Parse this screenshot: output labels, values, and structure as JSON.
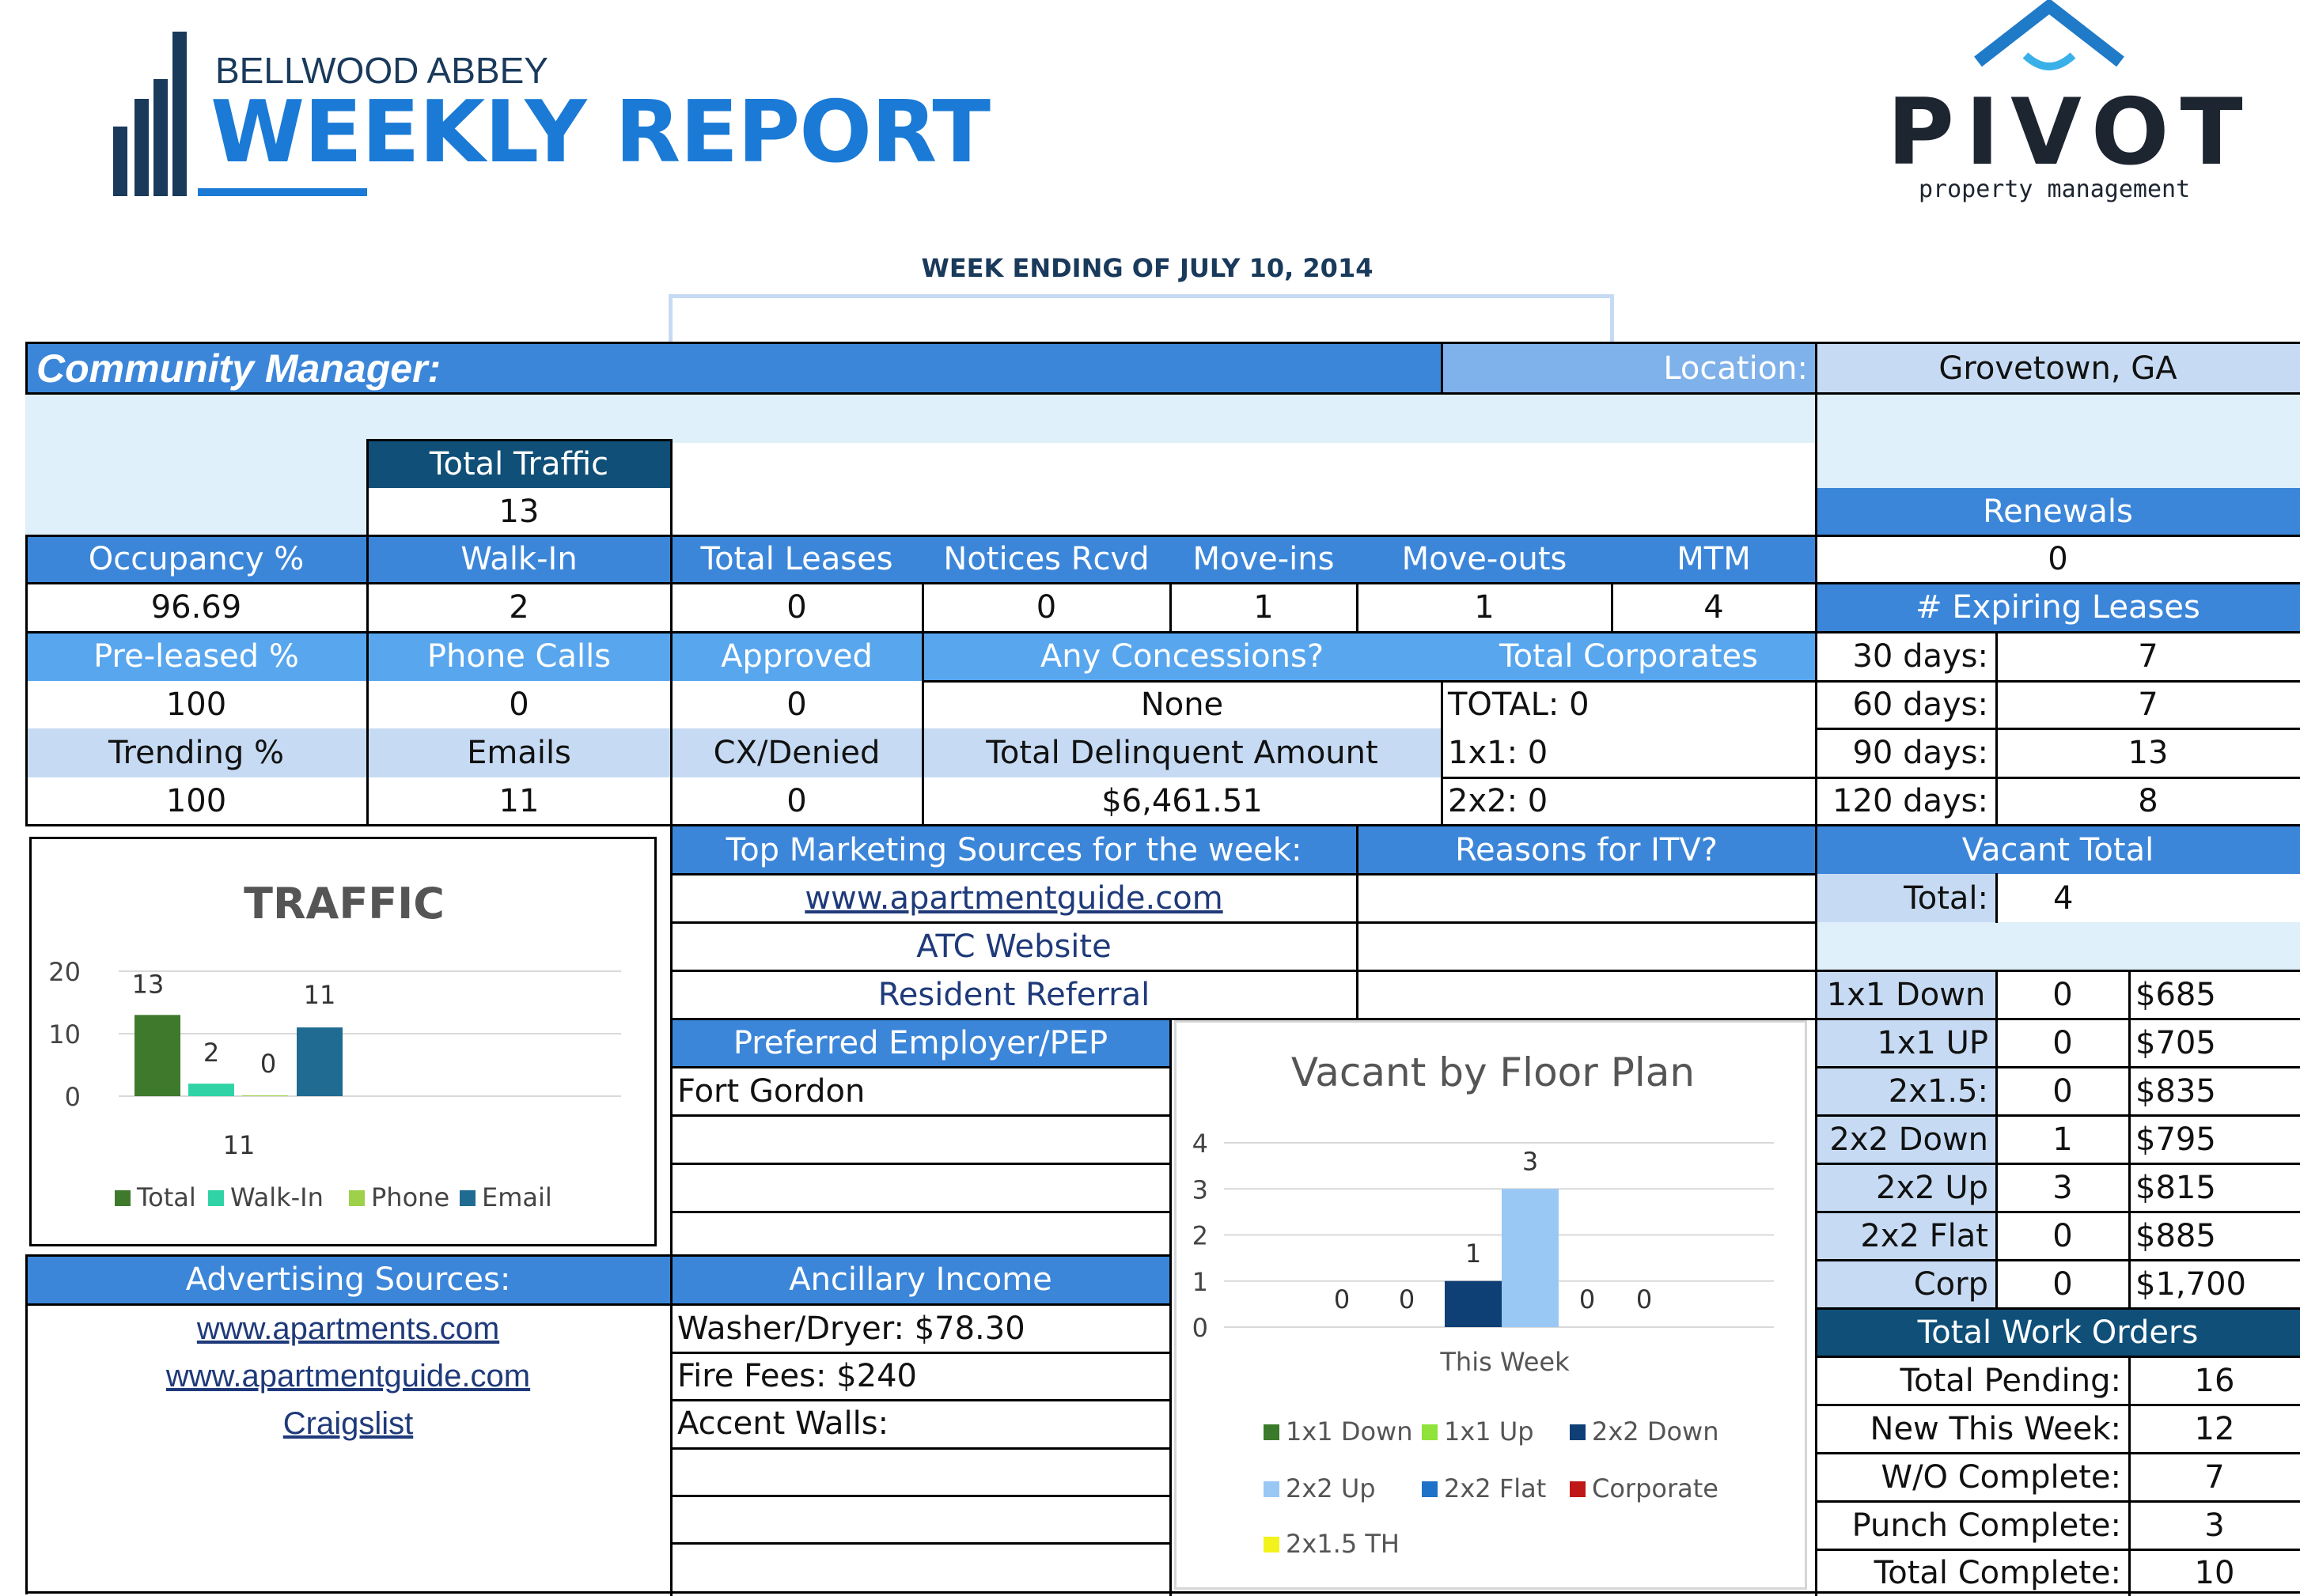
{
  "brand": {
    "community_name": "BELLWOOD ABBEY",
    "report_title": "WEEKLY REPORT",
    "logo_word": "PIVOT",
    "logo_tagline": "property management"
  },
  "week_ending": "WEEK ENDING OF JULY 10, 2014",
  "manager_bar": {
    "label": "Community Manager:",
    "location_label": "Location:",
    "location_value": "Grovetown, GA"
  },
  "traffic": {
    "total_label": "Total Traffic",
    "total_value": "13"
  },
  "row1": {
    "occupancy_label": "Occupancy %",
    "occupancy_value": "96.69",
    "walkin_label": "Walk-In",
    "walkin_value": "2",
    "total_leases_label": "Total Leases",
    "total_leases_value": "0",
    "notices_label": "Notices Rcvd",
    "notices_value": "0",
    "moveins_label": "Move-ins",
    "moveins_value": "1",
    "moveouts_label": "Move-outs",
    "moveouts_value": "1",
    "mtm_label": "MTM",
    "mtm_value": "4"
  },
  "row2": {
    "preleased_label": "Pre-leased %",
    "preleased_value": "100",
    "phone_label": "Phone Calls",
    "phone_value": "0",
    "approved_label": "Approved",
    "approved_value": "0",
    "concessions_label": "Any Concessions?",
    "concessions_value": "None",
    "corporates_label": "Total Corporates",
    "corporates_total": "TOTAL: 0",
    "corporates_1x1": "1x1: 0",
    "corporates_2x2": "2x2: 0"
  },
  "row3": {
    "trending_label": "Trending %",
    "trending_value": "100",
    "emails_label": "Emails",
    "emails_value": "11",
    "denied_label": "CX/Denied",
    "denied_value": "0",
    "delinquent_label": "Total Delinquent Amount",
    "delinquent_value": "$6,461.51"
  },
  "renewals": {
    "label": "Renewals",
    "value": "0"
  },
  "expiring": {
    "label": "# Expiring Leases",
    "rows": [
      {
        "label": "30 days:",
        "value": "7"
      },
      {
        "label": "60 days:",
        "value": "7"
      },
      {
        "label": "90 days:",
        "value": "13"
      },
      {
        "label": "120 days:",
        "value": "8"
      }
    ]
  },
  "marketing": {
    "label": "Top Marketing Sources for the week:",
    "sources": [
      "www.apartmentguide.com",
      "ATC Website",
      "Resident Referral"
    ]
  },
  "itv": {
    "label": "Reasons for ITV?"
  },
  "vacant": {
    "label": "Vacant Total",
    "total_label": "Total:",
    "total_value": "4",
    "rows": [
      {
        "plan": "1x1 Down",
        "count": "0",
        "price": "$685"
      },
      {
        "plan": "1x1 UP",
        "count": "0",
        "price": "$705"
      },
      {
        "plan": "2x1.5:",
        "count": "0",
        "price": "$835"
      },
      {
        "plan": "2x2 Down",
        "count": "1",
        "price": "$795"
      },
      {
        "plan": "2x2 Up",
        "count": "3",
        "price": "$815"
      },
      {
        "plan": "2x2 Flat",
        "count": "0",
        "price": "$885"
      },
      {
        "plan": "Corp",
        "count": "0",
        "price": "$1,700"
      }
    ]
  },
  "pep": {
    "label": "Preferred Employer/PEP",
    "entries": [
      "Fort Gordon",
      "",
      "",
      ""
    ]
  },
  "advertising": {
    "label": "Advertising Sources:",
    "sources": [
      "www.apartments.com",
      "www.apartmentguide.com",
      "Craigslist"
    ]
  },
  "ancillary": {
    "label": "Ancillary Income",
    "entries": [
      "Washer/Dryer: $78.30",
      "Fire Fees: $240",
      "Accent Walls:",
      "",
      "",
      ""
    ]
  },
  "work_orders": {
    "label": "Total Work Orders",
    "rows": [
      {
        "label": "Total Pending:",
        "value": "16"
      },
      {
        "label": "New This Week:",
        "value": "12"
      },
      {
        "label": "W/O Complete:",
        "value": "7"
      },
      {
        "label": "Punch Complete:",
        "value": "3"
      },
      {
        "label": "Total Complete:",
        "value": "10"
      }
    ]
  },
  "colors": {
    "header": "#3c86d9",
    "header_light": "#58a6ee",
    "cell_light": "#c6dbf3",
    "dark": "#0f4f78",
    "band": "#dff0fb"
  },
  "chart_data": [
    {
      "type": "bar",
      "title": "TRAFFIC",
      "series": [
        {
          "name": "Total",
          "values": [
            13
          ],
          "color": "#3f7a2c"
        },
        {
          "name": "Walk-In",
          "values": [
            2
          ],
          "color": "#2fd3a6"
        },
        {
          "name": "Phone",
          "values": [
            0
          ],
          "color": "#9ed04a"
        },
        {
          "name": "Email",
          "values": [
            11
          ],
          "color": "#1f6b92"
        }
      ],
      "data_labels": [
        "13",
        "2",
        "0",
        "11"
      ],
      "extra_label": "11",
      "yticks": [
        "20",
        "10",
        "0"
      ],
      "ylim": [
        0,
        20
      ],
      "legend_position": "bottom",
      "grid": true
    },
    {
      "type": "bar",
      "title": "Vacant by Floor Plan",
      "categories": [
        "This Week"
      ],
      "series": [
        {
          "name": "1x1 Down",
          "values": [
            0
          ],
          "color": "#3a7a2a"
        },
        {
          "name": "1x1 Up",
          "values": [
            0
          ],
          "color": "#8fe33a"
        },
        {
          "name": "2x2 Down",
          "values": [
            1
          ],
          "color": "#0e3f75"
        },
        {
          "name": "2x2 Up",
          "values": [
            3
          ],
          "color": "#9ac8f5"
        },
        {
          "name": "2x2 Flat",
          "values": [
            0
          ],
          "color": "#1e72c8"
        },
        {
          "name": "Corporate",
          "values": [
            0
          ],
          "color": "#c01818"
        },
        {
          "name": "2x1.5 TH",
          "values": [
            0
          ],
          "color": "#f2f21c"
        }
      ],
      "yticks": [
        "4",
        "3",
        "2",
        "1",
        "0"
      ],
      "ylim": [
        0,
        4
      ],
      "legend_position": "bottom",
      "grid": true
    }
  ]
}
